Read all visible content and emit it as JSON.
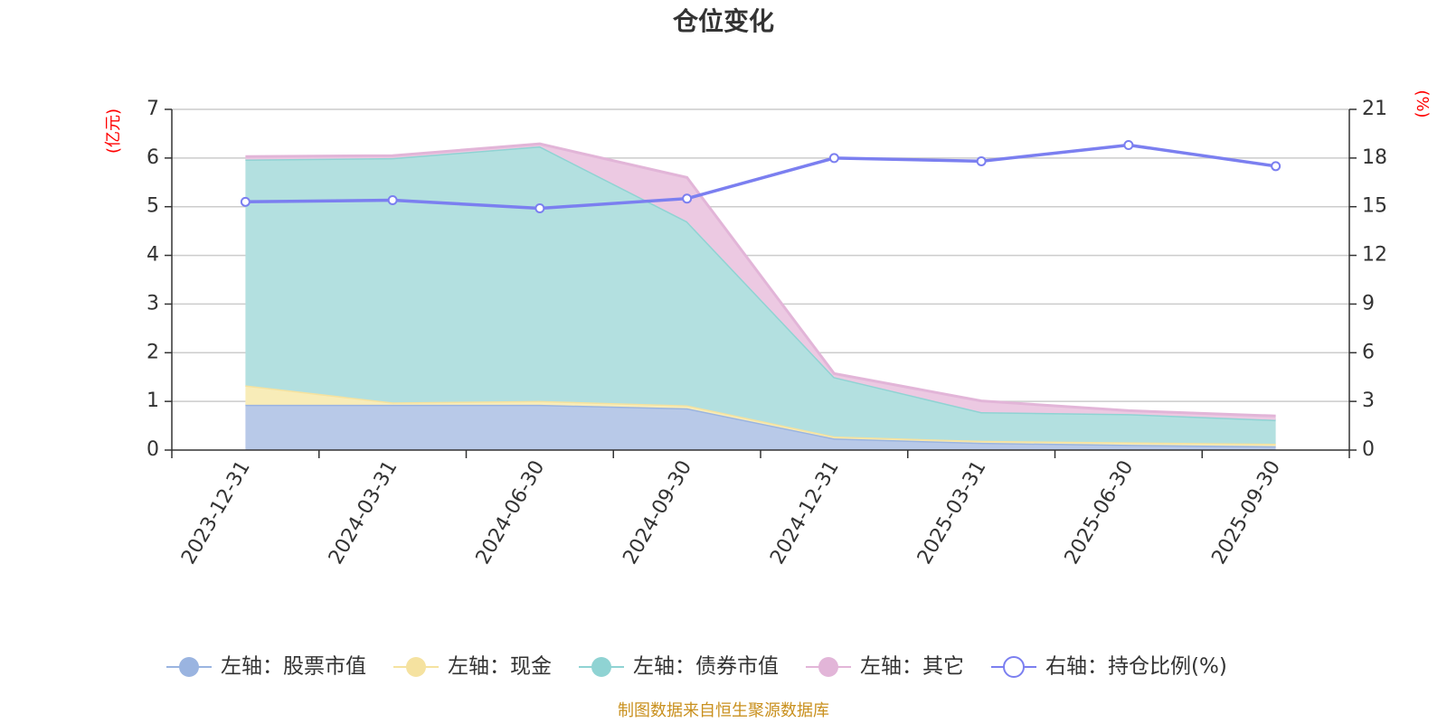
{
  "chart_data": {
    "type": "area",
    "title": "仓位变化",
    "categories": [
      "2023-12-31",
      "2024-03-31",
      "2024-06-30",
      "2024-09-30",
      "2024-12-31",
      "2025-03-31",
      "2025-06-30",
      "2025-09-30"
    ],
    "y_left": {
      "unit": "(亿元)",
      "range": [
        0,
        7
      ],
      "ticks": [
        0,
        1,
        2,
        3,
        4,
        5,
        6,
        7
      ]
    },
    "y_right": {
      "unit": "(%)",
      "range": [
        0,
        21
      ],
      "ticks": [
        0,
        3,
        6,
        9,
        12,
        15,
        18,
        21
      ]
    },
    "grid": true,
    "legend_position": "bottom",
    "series": [
      {
        "name": "左轴：股票市值",
        "axis": "left",
        "stacked": true,
        "line_color": "#9ab4e0",
        "fill_color": "#b8c9e8",
        "values": [
          0.93,
          0.93,
          0.93,
          0.86,
          0.24,
          0.15,
          0.11,
          0.08
        ]
      },
      {
        "name": "左轴：现金",
        "axis": "left",
        "stacked": true,
        "line_color": "#f5e2a0",
        "fill_color": "#f8ecb8",
        "values": [
          0.4,
          0.05,
          0.08,
          0.06,
          0.04,
          0.04,
          0.05,
          0.05
        ]
      },
      {
        "name": "左轴：债券市值",
        "axis": "left",
        "stacked": true,
        "line_color": "#8fd3d3",
        "fill_color": "#b3e0e0",
        "values": [
          4.64,
          5.02,
          5.23,
          3.78,
          1.22,
          0.59,
          0.58,
          0.49
        ]
      },
      {
        "name": "左轴：其它",
        "axis": "left",
        "stacked": true,
        "line_color": "#e2b5d8",
        "fill_color": "#ecc9e2",
        "values": [
          0.06,
          0.05,
          0.05,
          0.9,
          0.07,
          0.23,
          0.07,
          0.08
        ]
      },
      {
        "name": "右轴：持仓比例(%)",
        "axis": "right",
        "type": "line",
        "line_color": "#7b7ff0",
        "values": [
          15.3,
          15.4,
          14.9,
          15.5,
          18.0,
          17.8,
          18.8,
          17.5
        ]
      }
    ],
    "source_note": "制图数据来自恒生聚源数据库"
  }
}
